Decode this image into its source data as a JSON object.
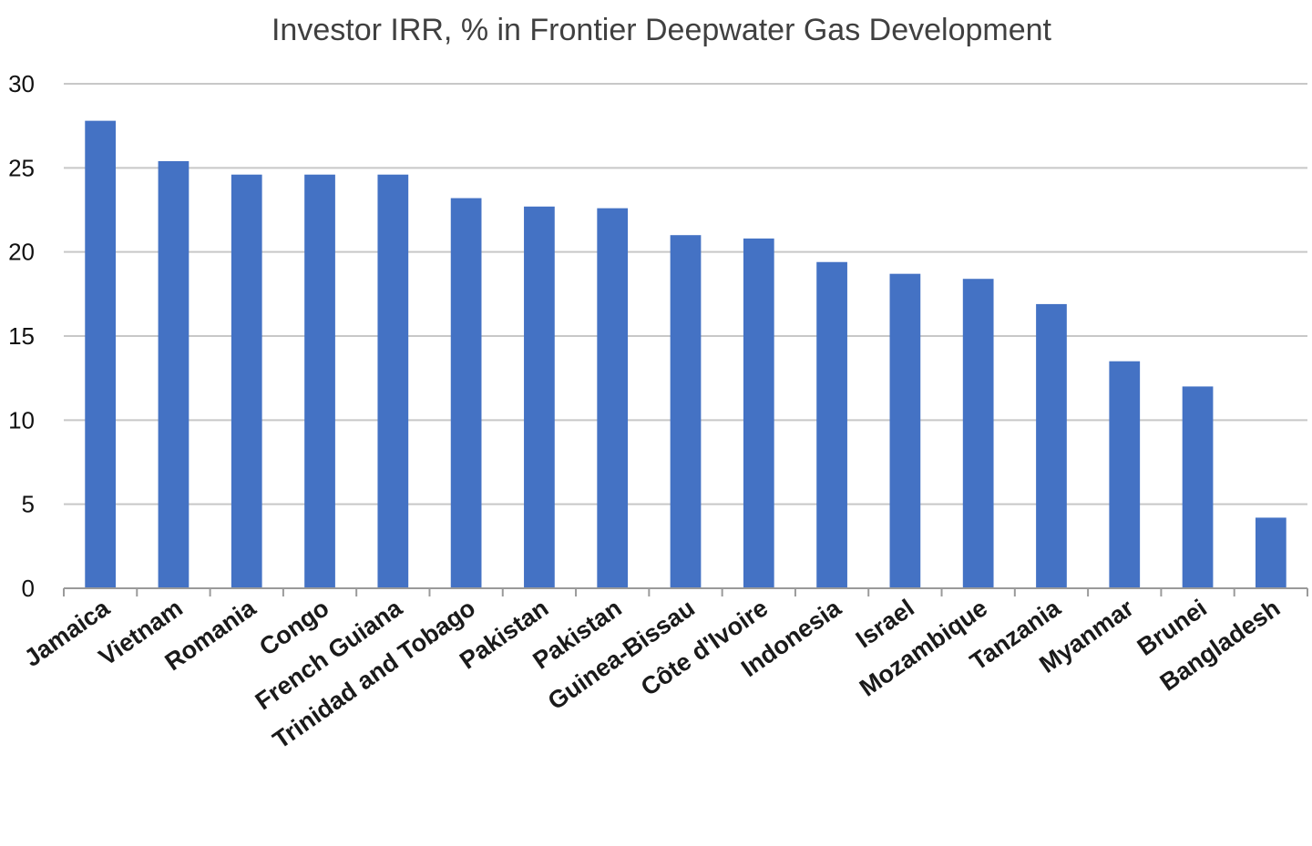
{
  "chart_data": {
    "type": "bar",
    "title": "Investor IRR, % in Frontier Deepwater Gas Development",
    "xlabel": "",
    "ylabel": "",
    "ylim": [
      0,
      30
    ],
    "yticks": [
      0,
      5,
      10,
      15,
      20,
      25,
      30
    ],
    "grid": true,
    "legend": "none",
    "bar_color": "#4472c4",
    "categories": [
      "Jamaica",
      "Vietnam",
      "Romania",
      "Congo",
      "French Guiana",
      "Trinidad and Tobago",
      "Pakistan",
      "Pakistan",
      "Guinea-Bissau",
      "Côte d'Ivoire",
      "Indonesia",
      "Israel",
      "Mozambique",
      "Tanzania",
      "Myanmar",
      "Brunei",
      "Bangladesh"
    ],
    "values": [
      27.8,
      25.4,
      24.6,
      24.6,
      24.6,
      23.2,
      22.7,
      22.6,
      21.0,
      20.8,
      19.4,
      18.7,
      18.4,
      16.9,
      13.5,
      12.0,
      4.2
    ]
  }
}
